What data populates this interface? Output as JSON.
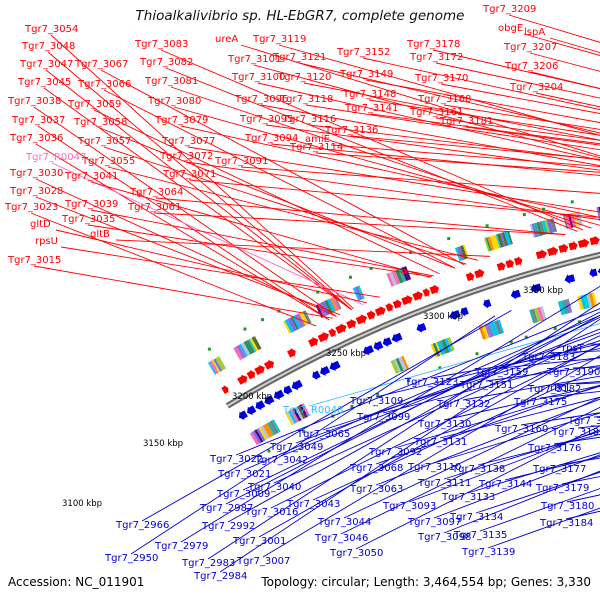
{
  "title": "Thioalkalivibrio sp. HL-EbGR7, complete genome",
  "footer": {
    "accession": "Accession: NC_011901",
    "info": "Topology: circular; Length: 3,464,554 bp; Genes: 3,330"
  },
  "scale": [
    "3100 kbp",
    "3150 kbp",
    "3200 kbp",
    "3250 kbp",
    "3300 kbp",
    "3350 kbp"
  ],
  "labels_top": [
    "Tgr7_3054",
    "Tgr7_3048",
    "Tgr7_3047",
    "Tgr7_3045",
    "Tgr7_3038",
    "Tgr7_3037",
    "Tgr7_3036",
    "Tgr7_R0047",
    "Tgr7_3030",
    "Tgr7_3028",
    "Tgr7_3023",
    "gltD",
    "rpsU",
    "Tgr7_3015",
    "Tgr7_3067",
    "Tgr7_3066",
    "Tgr7_3059",
    "Tgr7_3058",
    "Tgr7_3057",
    "Tgr7_3055",
    "Tgr7_3041",
    "Tgr7_3039",
    "Tgr7_3035",
    "gltB",
    "Tgr7_3083",
    "Tgr7_3082",
    "Tgr7_3081",
    "Tgr7_3080",
    "Tgr7_3079",
    "Tgr7_3077",
    "Tgr7_3072",
    "Tgr7_3071",
    "Tgr7_3064",
    "Tgr7_3061",
    "ureA",
    "Tgr7_3101",
    "Tgr7_3100",
    "Tgr7_3096",
    "Tgr7_3095",
    "Tgr7_3094",
    "Tgr7_3091",
    "Tgr7_3119",
    "Tgr7_3121",
    "Tgr7_3120",
    "Tgr7_3118",
    "Tgr7_3116",
    "amiE",
    "Tgr7_3114",
    "Tgr7_3152",
    "Tgr7_3149",
    "Tgr7_3148",
    "Tgr7_3141",
    "Tgr7_3136",
    "Tgr7_3178",
    "Tgr7_3172",
    "Tgr7_3170",
    "Tgr7_3168",
    "Tgr7_3161",
    "Tgr7_3181",
    "Tgr7_3209",
    "obgE",
    "lspA",
    "Tgr7_3207",
    "Tgr7_3206",
    "Tgr7_3204"
  ],
  "labels_bottom": [
    "Tgr7_R0048",
    "Tgr7_3065",
    "Tgr7_3049",
    "Tgr7_3042",
    "Tgr7_3022",
    "Tgr7_3021",
    "Tgr7_3040",
    "Tgr7_3009",
    "Tgr7_3016",
    "Tgr7_2987",
    "Tgr7_2992",
    "Tgr7_2966",
    "Tgr7_2979",
    "Tgr7_3001",
    "Tgr7_2950",
    "Tgr7_2983",
    "Tgr7_3007",
    "Tgr7_2984",
    "Tgr7_3043",
    "Tgr7_3044",
    "Tgr7_3046",
    "Tgr7_3050",
    "Tgr7_3063",
    "Tgr7_3068",
    "Tgr7_3092",
    "Tgr7_3099",
    "Tgr7_3109",
    "Tgr7_3123",
    "Tgr7_3132",
    "Tgr7_3130",
    "Tgr7_3131",
    "Tgr7_3110",
    "Tgr7_3111",
    "Tgr7_3093",
    "Tgr7_3097",
    "Tgr7_3098",
    "Tgr7_3138",
    "Tgr7_3133",
    "Tgr7_3134",
    "Tgr7_3135",
    "Tgr7_3139",
    "Tgr7_3144",
    "Tgr7_3159",
    "Tgr7_3151",
    "Tgr7_3160",
    "Tgr7_3183",
    "Tgr7_3182",
    "Tgr7_3175",
    "Tgr7_3176",
    "Tgr7_3177",
    "Tgr7_3179",
    "Tgr7_3180",
    "Tgr7_3184",
    "Tgr7_3190",
    "Tgr7_3185",
    "Tgr7_3199",
    "rpsT",
    "rbcL"
  ]
}
